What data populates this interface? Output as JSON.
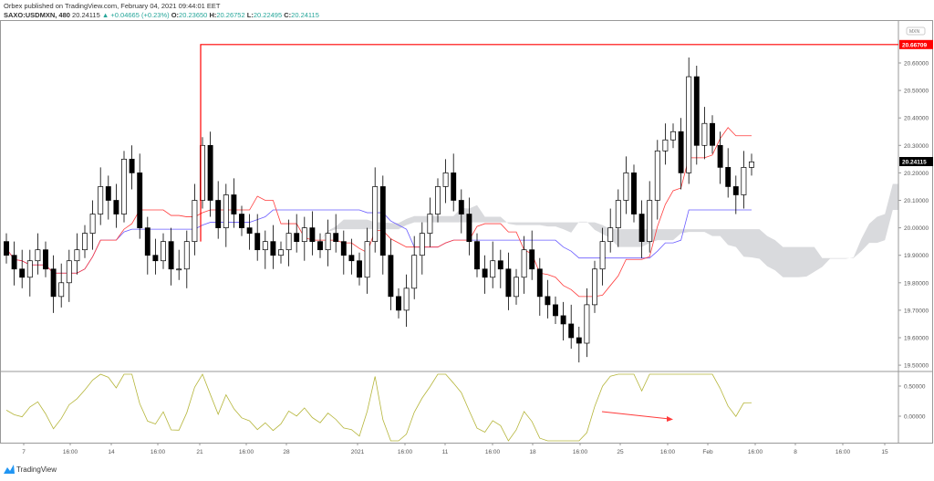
{
  "header": {
    "published": "Orbex published on TradingView.com, February 04, 2021 09:44:01 EET",
    "symbol": "SAXO:USDMXN, 480",
    "last": "20.24115",
    "change": "+0.04665 (+0.23%)",
    "o_label": "O:",
    "o": "20.23650",
    "h_label": "H:",
    "h": "20.26752",
    "l_label": "L:",
    "l": "20.22495",
    "c_label": "C:",
    "c": "20.24115"
  },
  "footer": {
    "brand": "TradingView"
  },
  "colors": {
    "up": "#ffffff",
    "down": "#000000",
    "tenkan": "#ff3b3b",
    "kijun": "#6a5cff",
    "cloud": "#d9dadd",
    "oscillator": "#b5b53a",
    "level": "#ff0000",
    "last_price_bg": "#000000"
  },
  "chart_data": {
    "type": "candlestick",
    "currency_badge": "MXN",
    "ylim": [
      19.45,
      20.72
    ],
    "price_ticks": [
      "20.60000",
      "20.50000",
      "20.40000",
      "20.30000",
      "20.20000",
      "20.10000",
      "20.00000",
      "19.90000",
      "19.80000",
      "19.70000",
      "19.60000",
      "19.50000"
    ],
    "level_line": {
      "value": 20.66709,
      "label": "20.66709"
    },
    "last_price_label": "20.24115",
    "x_tick_labels": [
      "7",
      "16:00",
      "14",
      "16:00",
      "21",
      "16:00",
      "28",
      "2021",
      "16:00",
      "11",
      "16:00",
      "18",
      "16:00",
      "25",
      "16:00",
      "Feb",
      "16:00",
      "8",
      "16:00",
      "15"
    ],
    "closes": [
      19.9,
      19.85,
      19.82,
      19.88,
      19.92,
      19.85,
      19.75,
      19.8,
      19.88,
      19.92,
      19.98,
      20.05,
      20.15,
      20.1,
      20.05,
      20.25,
      20.2,
      20.0,
      19.9,
      19.88,
      19.95,
      19.85,
      19.85,
      19.95,
      20.1,
      20.3,
      20.1,
      20.0,
      20.12,
      20.05,
      20.0,
      19.98,
      19.92,
      19.95,
      19.9,
      19.92,
      19.98,
      19.95,
      20.0,
      19.95,
      19.92,
      19.98,
      19.95,
      19.9,
      19.88,
      19.82,
      19.95,
      20.15,
      19.9,
      19.75,
      19.7,
      19.78,
      19.9,
      19.98,
      20.05,
      20.15,
      20.2,
      20.1,
      20.05,
      19.95,
      19.85,
      19.82,
      19.88,
      19.85,
      19.75,
      19.82,
      19.92,
      19.85,
      19.75,
      19.72,
      19.68,
      19.65,
      19.6,
      19.58,
      19.72,
      19.85,
      19.95,
      20.0,
      20.1,
      20.2,
      20.05,
      19.95,
      20.1,
      20.28,
      20.32,
      20.35,
      20.2,
      20.55,
      20.3,
      20.38,
      20.3,
      20.22,
      20.15,
      20.12,
      20.22,
      20.24
    ],
    "oscillator_ticks": [
      "0.50000",
      "0.00000"
    ]
  }
}
